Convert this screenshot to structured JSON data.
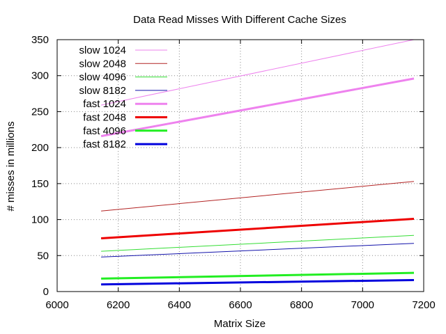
{
  "chart_data": {
    "type": "line",
    "title": "Data Read Misses With Different Cache Sizes",
    "xlabel": "Matrix Size",
    "ylabel": "# misses in millions",
    "xlim": [
      6000,
      7200
    ],
    "ylim": [
      0,
      350
    ],
    "xticks": [
      6000,
      6200,
      6400,
      6600,
      6800,
      7000,
      7200
    ],
    "yticks": [
      0,
      50,
      100,
      150,
      200,
      250,
      300,
      350
    ],
    "grid": true,
    "legend_position": "top-left",
    "series": [
      {
        "name": "slow 1024",
        "color": "#ee82ee",
        "width": 1,
        "x": [
          6144,
          7168
        ],
        "y": [
          259,
          350
        ]
      },
      {
        "name": "slow 2048",
        "color": "#b22222",
        "width": 1,
        "x": [
          6144,
          7168
        ],
        "y": [
          112,
          153
        ]
      },
      {
        "name": "slow 4096",
        "color": "#33dd33",
        "width": 1,
        "x": [
          6144,
          7168
        ],
        "y": [
          56,
          78
        ]
      },
      {
        "name": "slow 8182",
        "color": "#1111aa",
        "width": 1,
        "x": [
          6144,
          7168
        ],
        "y": [
          48,
          67
        ]
      },
      {
        "name": "fast 1024",
        "color": "#ee82ee",
        "width": 3,
        "x": [
          6144,
          7168
        ],
        "y": [
          216,
          296
        ]
      },
      {
        "name": "fast 2048",
        "color": "#ee0000",
        "width": 3,
        "x": [
          6144,
          7168
        ],
        "y": [
          74,
          101
        ]
      },
      {
        "name": "fast 4096",
        "color": "#22ee22",
        "width": 3,
        "x": [
          6144,
          7168
        ],
        "y": [
          18,
          26
        ]
      },
      {
        "name": "fast 8182",
        "color": "#0000dd",
        "width": 3,
        "x": [
          6144,
          7168
        ],
        "y": [
          10,
          16
        ]
      }
    ]
  }
}
